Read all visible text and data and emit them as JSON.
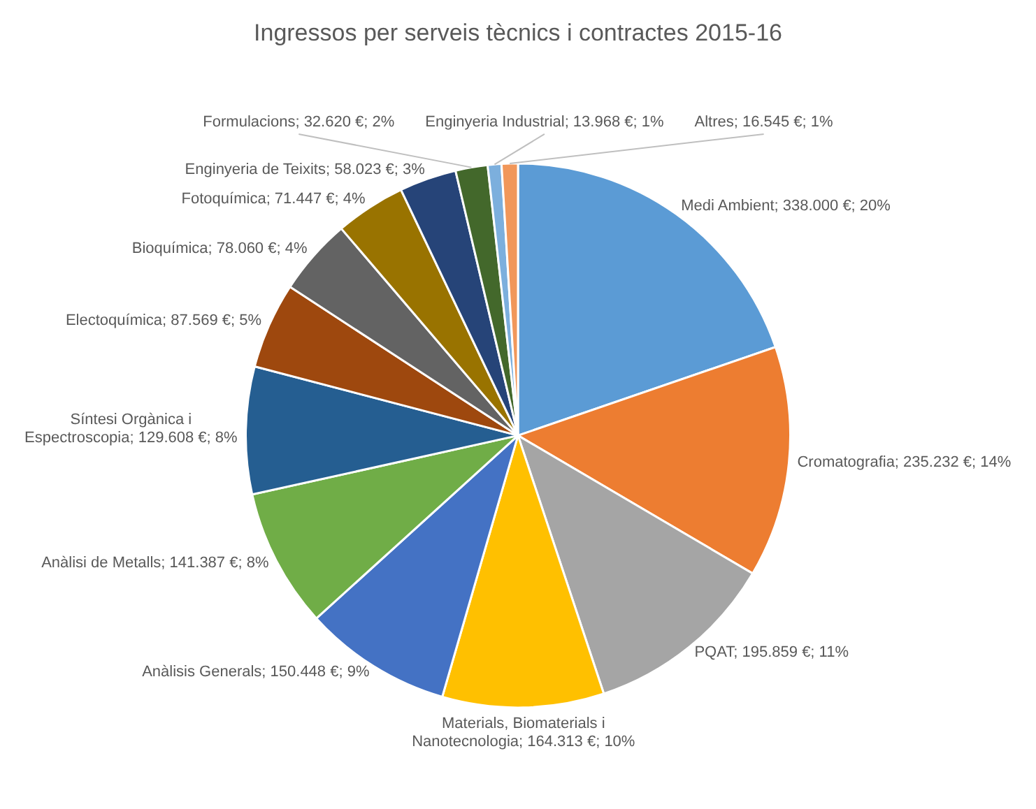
{
  "chart_data": {
    "type": "pie",
    "title": "Ingressos per serveis tècnics i contractes 2015-16",
    "categories": [
      "Medi Ambient",
      "Cromatografia",
      "PQAT",
      "Materials, Biomaterials i Nanotecnologia",
      "Anàlisis Generals",
      "Anàlisi de Metalls",
      "Síntesi Orgànica i Espectroscopia",
      "Electoquímica",
      "Bioquímica",
      "Fotoquímica",
      "Enginyeria de Teixits",
      "Formulacions",
      "Enginyeria Industrial",
      "Altres"
    ],
    "values": [
      338000,
      235232,
      195859,
      164313,
      150448,
      141387,
      129608,
      87569,
      78060,
      71447,
      58023,
      32620,
      13968,
      16545
    ],
    "value_labels": [
      "338.000 €; 20%",
      "235.232 €; 14%",
      "195.859 €; 11%",
      "164.313 €; 10%",
      "150.448 €; 9%",
      "141.387 €; 8%",
      "129.608 €; 8%",
      "87.569 €; 5%",
      "78.060 €; 4%",
      "71.447 €; 4%",
      "58.023 €; 3%",
      "32.620 €; 2%",
      "13.968 €; 1%",
      "16.545 €; 1%"
    ],
    "colors": [
      "#5b9bd5",
      "#ed7d31",
      "#a5a5a5",
      "#ffc000",
      "#4472c4",
      "#70ad47",
      "#255e91",
      "#9e480e",
      "#636363",
      "#997300",
      "#264478",
      "#43682b",
      "#7cafdd",
      "#f1975a"
    ],
    "legend": false
  }
}
